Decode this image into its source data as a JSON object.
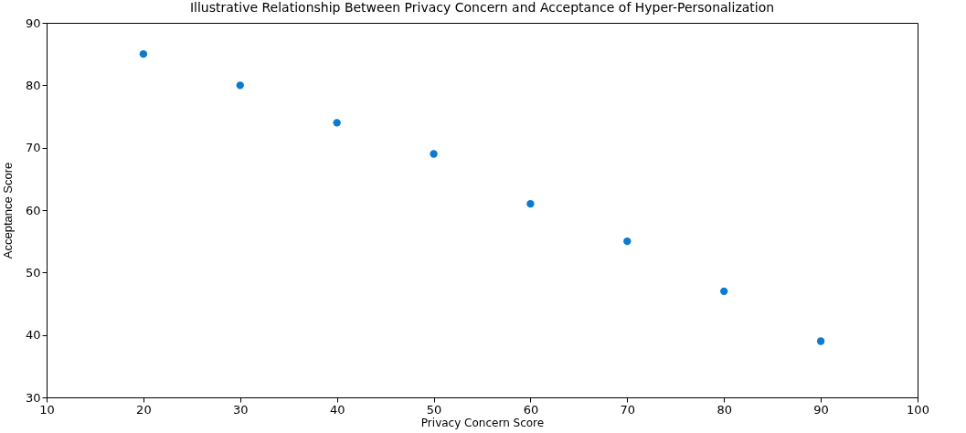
{
  "chart_data": {
    "type": "scatter",
    "title": "Illustrative Relationship Between Privacy Concern and Acceptance of Hyper-Personalization",
    "xlabel": "Privacy Concern Score",
    "ylabel": "Acceptance Score",
    "x": [
      20,
      30,
      40,
      50,
      60,
      70,
      80,
      90
    ],
    "series": [
      {
        "color": "#0a7bd0",
        "values": [
          85,
          80,
          74,
          69,
          61,
          55,
          47,
          39
        ]
      }
    ],
    "xlim": [
      10,
      100
    ],
    "xticks": [
      10,
      20,
      30,
      40,
      50,
      60,
      70,
      80,
      90,
      100
    ],
    "ylim": [
      30,
      90
    ],
    "yticks": [
      30,
      40,
      50,
      60,
      70,
      80,
      90
    ],
    "marker": "circle",
    "grid": false
  }
}
